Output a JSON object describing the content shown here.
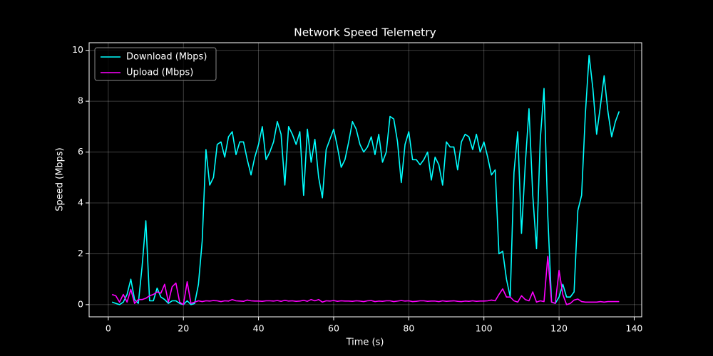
{
  "chart_data": {
    "type": "line",
    "title": "Network Speed Telemetry",
    "x_label": "Time (s)",
    "y_label": "Speed (Mbps)",
    "x": [
      1,
      2,
      3,
      4,
      5,
      6,
      7,
      8,
      9,
      10,
      11,
      12,
      13,
      14,
      15,
      16,
      17,
      18,
      19,
      20,
      21,
      22,
      23,
      24,
      25,
      26,
      27,
      28,
      29,
      30,
      31,
      32,
      33,
      34,
      35,
      36,
      37,
      38,
      39,
      40,
      41,
      42,
      43,
      44,
      45,
      46,
      47,
      48,
      49,
      50,
      51,
      52,
      53,
      54,
      55,
      56,
      57,
      58,
      59,
      60,
      61,
      62,
      63,
      64,
      65,
      66,
      67,
      68,
      69,
      70,
      71,
      72,
      73,
      74,
      75,
      76,
      77,
      78,
      79,
      80,
      81,
      82,
      83,
      84,
      85,
      86,
      87,
      88,
      89,
      90,
      91,
      92,
      93,
      94,
      95,
      96,
      97,
      98,
      99,
      100,
      101,
      102,
      103,
      104,
      105,
      106,
      107,
      108,
      109,
      110,
      111,
      112,
      113,
      114,
      115,
      116,
      117,
      118,
      119,
      120,
      121,
      122,
      123,
      124,
      125,
      126,
      127,
      128,
      129,
      130,
      131,
      132,
      133,
      134,
      135,
      136
    ],
    "series": [
      {
        "name": "Download (Mbps)",
        "color": "#00ffff",
        "values": [
          0.1,
          0.05,
          0.0,
          0.1,
          0.4,
          1.0,
          0.2,
          0.05,
          1.5,
          3.3,
          0.15,
          0.15,
          0.65,
          0.3,
          0.2,
          0.05,
          0.15,
          0.15,
          0.05,
          0.0,
          0.15,
          0.0,
          0.05,
          0.8,
          2.5,
          6.1,
          4.7,
          5.0,
          6.3,
          6.4,
          5.8,
          6.6,
          6.8,
          5.9,
          6.4,
          6.4,
          5.7,
          5.1,
          5.8,
          6.3,
          7.0,
          5.7,
          6.0,
          6.4,
          7.2,
          6.7,
          4.7,
          7.0,
          6.7,
          6.3,
          6.8,
          4.3,
          6.9,
          5.6,
          6.5,
          5.0,
          4.2,
          6.1,
          6.5,
          6.9,
          6.2,
          5.4,
          5.7,
          6.4,
          7.2,
          6.9,
          6.3,
          6.0,
          6.2,
          6.6,
          5.9,
          6.7,
          5.6,
          6.0,
          7.4,
          7.3,
          6.4,
          4.8,
          6.3,
          6.8,
          5.7,
          5.7,
          5.5,
          5.7,
          6.0,
          4.9,
          5.8,
          5.5,
          4.7,
          6.4,
          6.2,
          6.2,
          5.3,
          6.4,
          6.7,
          6.6,
          6.1,
          6.7,
          6.0,
          6.4,
          5.8,
          5.1,
          5.3,
          2.0,
          2.1,
          1.0,
          0.3,
          5.2,
          6.8,
          2.8,
          5.5,
          7.7,
          4.3,
          2.2,
          6.5,
          8.5,
          3.5,
          0.1,
          0.05,
          0.3,
          0.8,
          0.3,
          0.3,
          0.5,
          3.7,
          4.3,
          7.5,
          9.8,
          8.5,
          6.7,
          7.8,
          9.0,
          7.6,
          6.6,
          7.2,
          7.6
        ]
      },
      {
        "name": "Upload (Mbps)",
        "color": "#ff00ff",
        "values": [
          0.4,
          0.35,
          0.1,
          0.4,
          0.1,
          0.6,
          0.05,
          0.2,
          0.2,
          0.25,
          0.35,
          0.4,
          0.5,
          0.45,
          0.8,
          0.1,
          0.7,
          0.85,
          0.1,
          0.0,
          0.9,
          0.05,
          0.1,
          0.15,
          0.12,
          0.15,
          0.14,
          0.16,
          0.15,
          0.12,
          0.15,
          0.14,
          0.2,
          0.15,
          0.14,
          0.13,
          0.18,
          0.15,
          0.14,
          0.14,
          0.13,
          0.15,
          0.15,
          0.14,
          0.16,
          0.13,
          0.17,
          0.14,
          0.15,
          0.13,
          0.14,
          0.17,
          0.13,
          0.2,
          0.15,
          0.2,
          0.1,
          0.15,
          0.14,
          0.16,
          0.13,
          0.15,
          0.14,
          0.14,
          0.13,
          0.15,
          0.14,
          0.12,
          0.15,
          0.16,
          0.12,
          0.14,
          0.13,
          0.15,
          0.15,
          0.12,
          0.14,
          0.16,
          0.14,
          0.15,
          0.12,
          0.13,
          0.15,
          0.15,
          0.13,
          0.14,
          0.14,
          0.12,
          0.15,
          0.13,
          0.14,
          0.15,
          0.13,
          0.12,
          0.14,
          0.13,
          0.15,
          0.13,
          0.14,
          0.14,
          0.15,
          0.18,
          0.15,
          0.4,
          0.62,
          0.3,
          0.3,
          0.15,
          0.1,
          0.35,
          0.2,
          0.15,
          0.5,
          0.1,
          0.15,
          0.12,
          1.9,
          0.1,
          0.05,
          1.35,
          0.4,
          0.0,
          0.05,
          0.18,
          0.22,
          0.12,
          0.1,
          0.1,
          0.1,
          0.1,
          0.12,
          0.1,
          0.12,
          0.12,
          0.12,
          0.12
        ]
      }
    ],
    "xlim": [
      -5.1,
      142
    ],
    "ylim": [
      -0.48,
      10.3
    ],
    "xticks": [
      0,
      20,
      40,
      60,
      80,
      100,
      120,
      140
    ],
    "yticks": [
      0,
      2,
      4,
      6,
      8,
      10
    ],
    "grid": true,
    "legend": "upper left"
  }
}
